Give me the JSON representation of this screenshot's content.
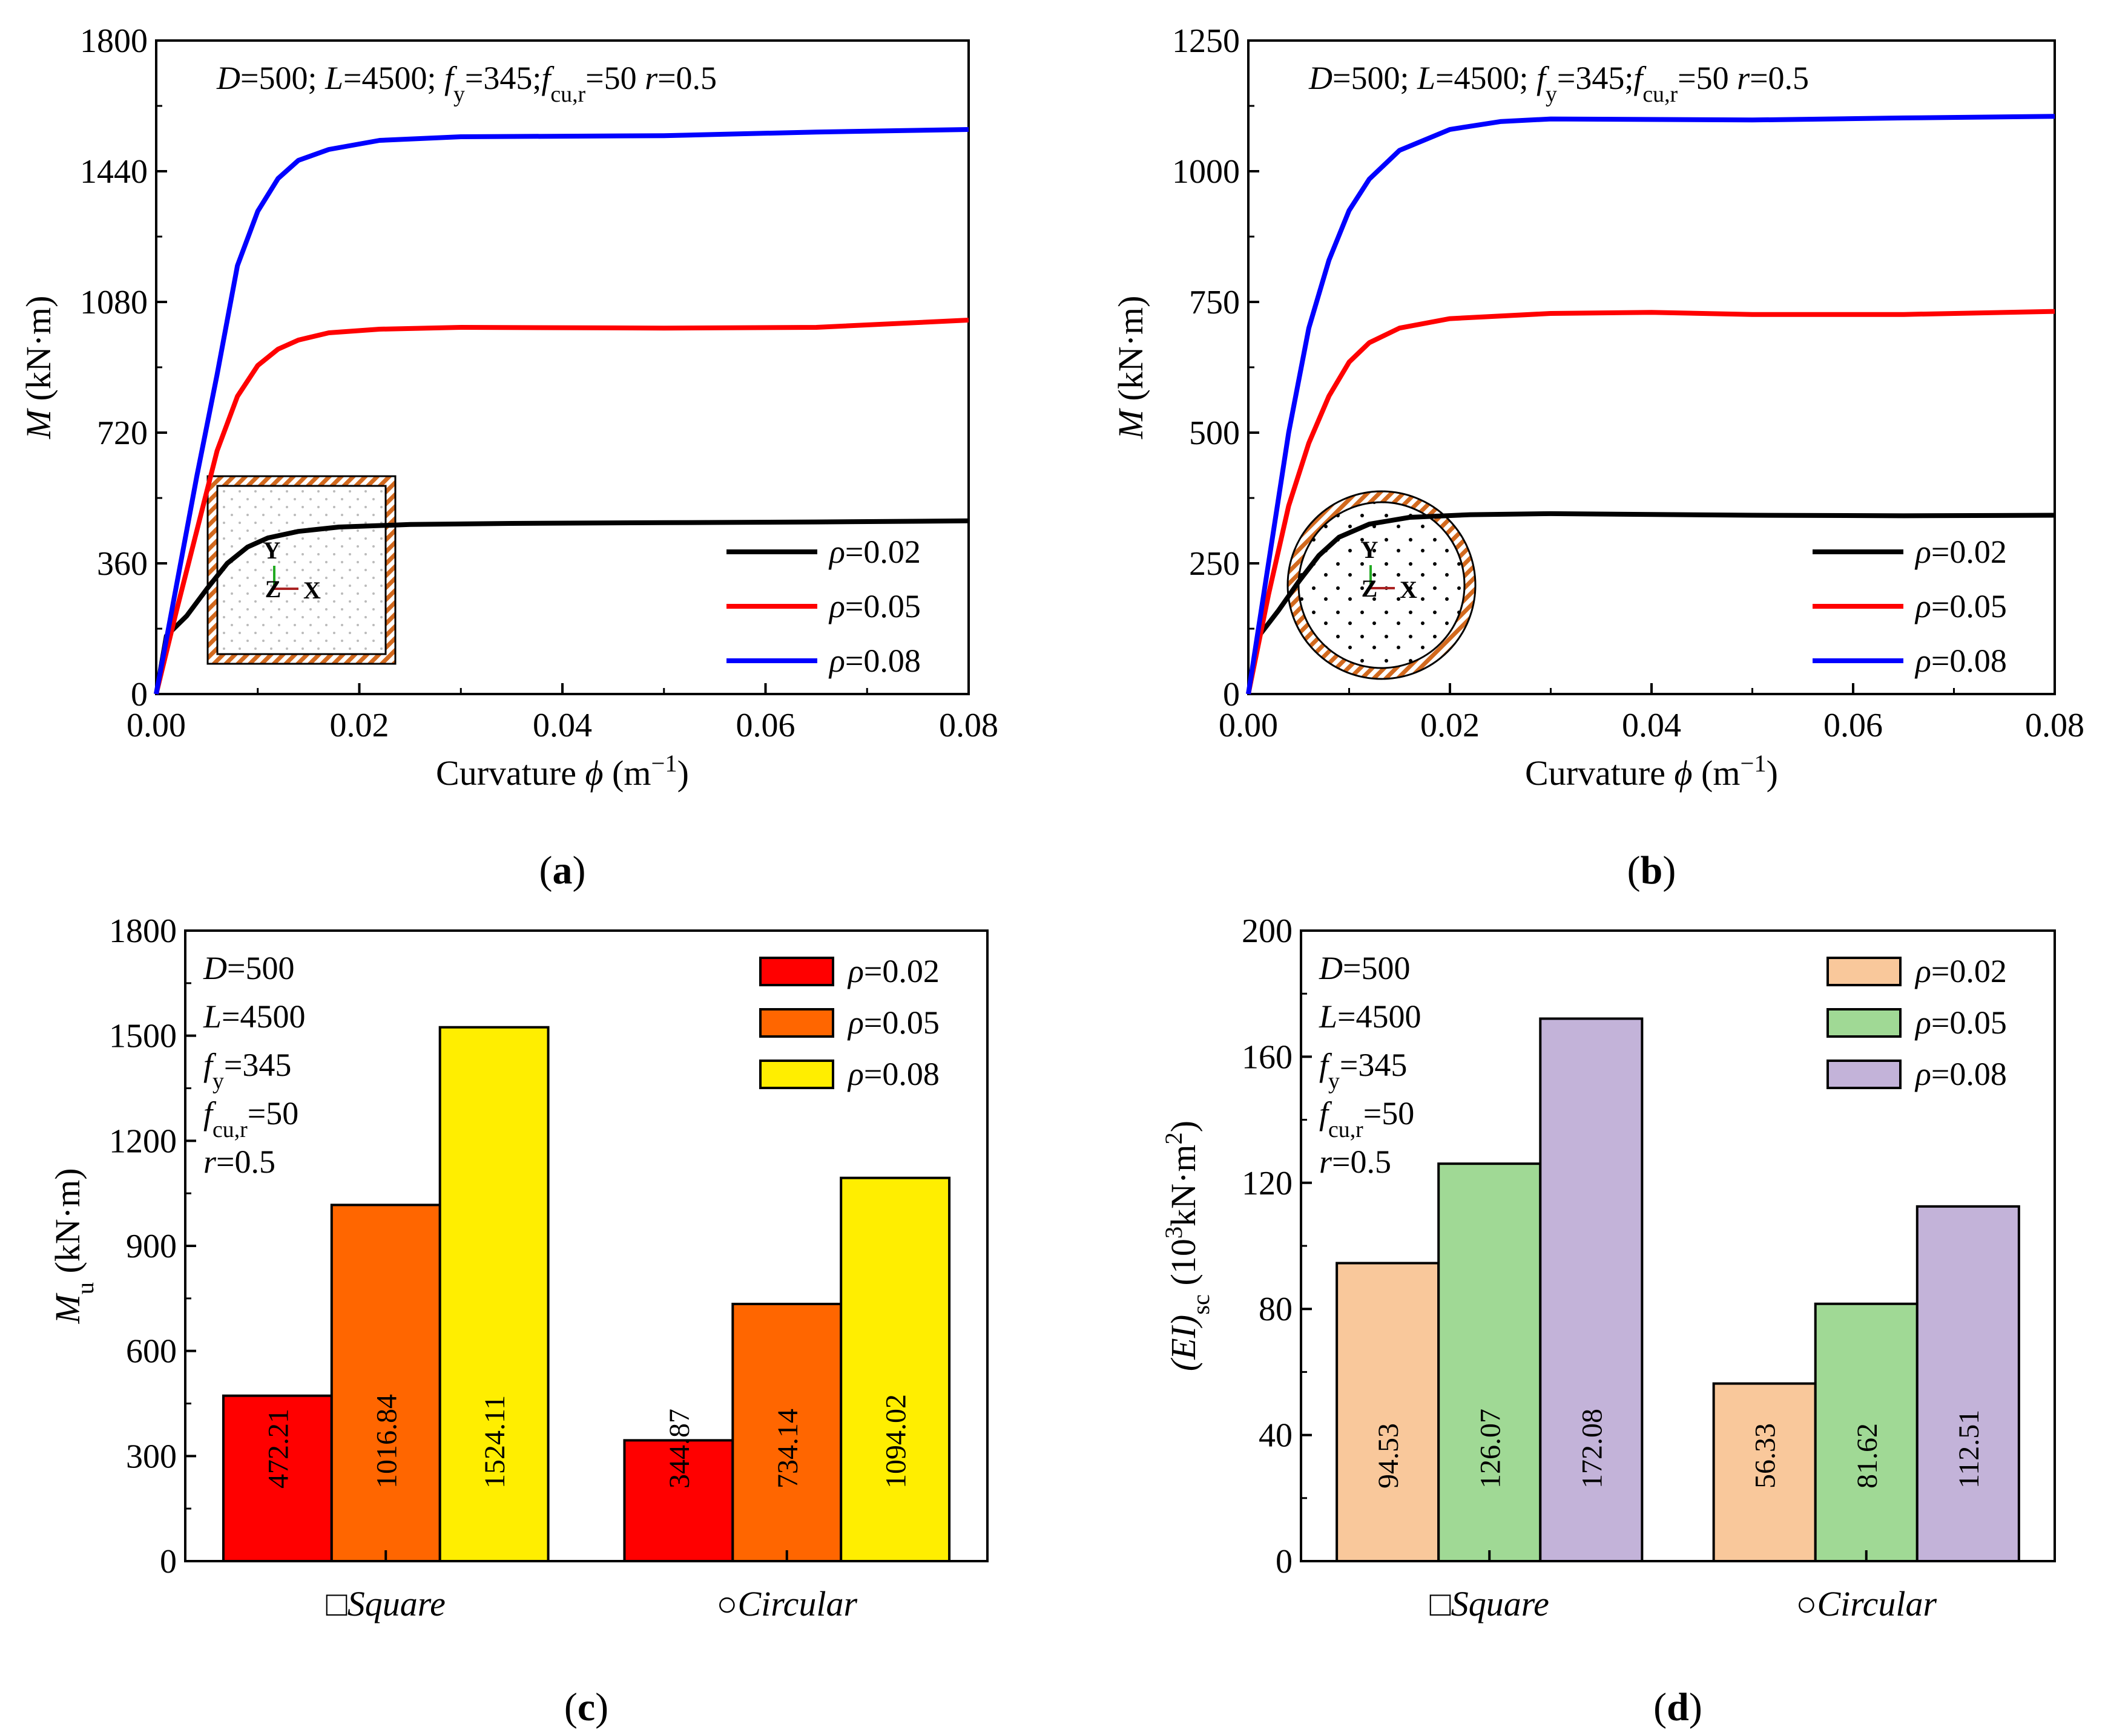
{
  "colors": {
    "black": "#000000",
    "red": "#ff0000",
    "blue": "#0000ff",
    "bar_red": "#ff0000",
    "bar_orange": "#ff6600",
    "bar_yellow": "#ffee00",
    "bar_peach": "#f9c89b",
    "bar_green": "#a0d995",
    "bar_purple": "#c3b3d9",
    "hatch": "#d2691e"
  },
  "chart_data": [
    {
      "type": "line",
      "panel_label": "(a)",
      "annotation": {
        "D": "D=500;",
        "L": "L=4500;",
        "fy": "f",
        "fy_sub": "y",
        "fy_val": "=345;",
        "fcu": "f",
        "fcu_sub": "cu,r",
        "fcu_val": "=50 ",
        "r": "r=0.5"
      },
      "xlabel": {
        "pre": "Curvature ",
        "sym": "ϕ",
        "post": " (m",
        "sup": "−1",
        "close": ")"
      },
      "ylabel": {
        "sym": "M",
        "rest": " (kN·m)"
      },
      "xlim": [
        0,
        0.08
      ],
      "ylim": [
        0,
        1800
      ],
      "xticks": [
        "0.00",
        "0.02",
        "0.04",
        "0.06",
        "0.08"
      ],
      "yticks": [
        "0",
        "360",
        "720",
        "1080",
        "1440",
        "1800"
      ],
      "inset": {
        "shape": "square",
        "y_axis": "Y",
        "z_axis": "Z",
        "x_axis": "X"
      },
      "legend": [
        "ρ=0.02",
        "ρ=0.05",
        "ρ=0.08"
      ],
      "series": [
        {
          "name": "ρ=0.02",
          "color": "black",
          "points": [
            [
              0,
              0
            ],
            [
              0.001,
              160
            ],
            [
              0.003,
              215
            ],
            [
              0.005,
              290
            ],
            [
              0.007,
              360
            ],
            [
              0.009,
              405
            ],
            [
              0.011,
              430
            ],
            [
              0.014,
              448
            ],
            [
              0.018,
              460
            ],
            [
              0.025,
              467
            ],
            [
              0.035,
              470
            ],
            [
              0.05,
              472
            ],
            [
              0.065,
              474
            ],
            [
              0.08,
              477
            ]
          ]
        },
        {
          "name": "ρ=0.05",
          "color": "red",
          "points": [
            [
              0,
              0
            ],
            [
              0.002,
              230
            ],
            [
              0.004,
              450
            ],
            [
              0.006,
              670
            ],
            [
              0.008,
              820
            ],
            [
              0.01,
              905
            ],
            [
              0.012,
              950
            ],
            [
              0.014,
              975
            ],
            [
              0.017,
              995
            ],
            [
              0.022,
              1005
            ],
            [
              0.03,
              1010
            ],
            [
              0.05,
              1008
            ],
            [
              0.065,
              1010
            ],
            [
              0.08,
              1030
            ]
          ]
        },
        {
          "name": "ρ=0.08",
          "color": "blue",
          "points": [
            [
              0,
              0
            ],
            [
              0.002,
              300
            ],
            [
              0.004,
              600
            ],
            [
              0.006,
              880
            ],
            [
              0.008,
              1180
            ],
            [
              0.01,
              1330
            ],
            [
              0.012,
              1420
            ],
            [
              0.014,
              1470
            ],
            [
              0.017,
              1500
            ],
            [
              0.022,
              1525
            ],
            [
              0.03,
              1535
            ],
            [
              0.05,
              1538
            ],
            [
              0.065,
              1548
            ],
            [
              0.08,
              1555
            ]
          ]
        }
      ]
    },
    {
      "type": "line",
      "panel_label": "(b)",
      "annotation": {
        "D": "D=500;",
        "L": "L=4500;",
        "fy": "f",
        "fy_sub": "y",
        "fy_val": "=345;",
        "fcu": "f",
        "fcu_sub": "cu,r",
        "fcu_val": "=50 ",
        "r": "r=0.5"
      },
      "xlabel": {
        "pre": "Curvature ",
        "sym": "ϕ",
        "post": " (m",
        "sup": "−1",
        "close": ")"
      },
      "ylabel": {
        "sym": "M",
        "rest": " (kN·m)"
      },
      "xlim": [
        0,
        0.08
      ],
      "ylim": [
        0,
        1250
      ],
      "xticks": [
        "0.00",
        "0.02",
        "0.04",
        "0.06",
        "0.08"
      ],
      "yticks": [
        "0",
        "250",
        "500",
        "750",
        "1000",
        "1250"
      ],
      "inset": {
        "shape": "circle",
        "y_axis": "Y",
        "z_axis": "Z",
        "x_axis": "X"
      },
      "legend": [
        "ρ=0.02",
        "ρ=0.05",
        "ρ=0.08"
      ],
      "series": [
        {
          "name": "ρ=0.02",
          "color": "black",
          "points": [
            [
              0,
              0
            ],
            [
              0.001,
              110
            ],
            [
              0.003,
              160
            ],
            [
              0.005,
              215
            ],
            [
              0.007,
              265
            ],
            [
              0.009,
              300
            ],
            [
              0.012,
              325
            ],
            [
              0.016,
              338
            ],
            [
              0.022,
              343
            ],
            [
              0.03,
              345
            ],
            [
              0.05,
              342
            ],
            [
              0.065,
              341
            ],
            [
              0.08,
              342
            ]
          ]
        },
        {
          "name": "ρ=0.05",
          "color": "red",
          "points": [
            [
              0,
              0
            ],
            [
              0.002,
              190
            ],
            [
              0.004,
              360
            ],
            [
              0.006,
              480
            ],
            [
              0.008,
              570
            ],
            [
              0.01,
              635
            ],
            [
              0.012,
              672
            ],
            [
              0.015,
              700
            ],
            [
              0.02,
              718
            ],
            [
              0.03,
              728
            ],
            [
              0.04,
              730
            ],
            [
              0.05,
              726
            ],
            [
              0.065,
              726
            ],
            [
              0.08,
              732
            ]
          ]
        },
        {
          "name": "ρ=0.08",
          "color": "blue",
          "points": [
            [
              0,
              0
            ],
            [
              0.002,
              250
            ],
            [
              0.004,
              500
            ],
            [
              0.006,
              700
            ],
            [
              0.008,
              830
            ],
            [
              0.01,
              925
            ],
            [
              0.012,
              985
            ],
            [
              0.015,
              1040
            ],
            [
              0.02,
              1080
            ],
            [
              0.025,
              1095
            ],
            [
              0.03,
              1100
            ],
            [
              0.05,
              1098
            ],
            [
              0.065,
              1102
            ],
            [
              0.08,
              1105
            ]
          ]
        }
      ]
    },
    {
      "type": "bar",
      "panel_label": "(c)",
      "annotation_lines": {
        "D": "D=500",
        "L": "L=4500",
        "fy": "f",
        "fy_sub": "y",
        "fy_val": "=345",
        "fcu": "f",
        "fcu_sub": "cu,r",
        "fcu_val": "=50",
        "r": "r=0.5"
      },
      "ylabel": {
        "sym": "M",
        "sub": "u",
        "rest": " (kN·m)"
      },
      "ylim": [
        0,
        1800
      ],
      "yticks": [
        "0",
        "300",
        "600",
        "900",
        "1200",
        "1500",
        "1800"
      ],
      "categories": [
        {
          "symbol": "□",
          "name": "Square"
        },
        {
          "symbol": "○",
          "name": "Circular"
        }
      ],
      "legend": [
        "ρ=0.02",
        "ρ=0.05",
        "ρ=0.08"
      ],
      "series": [
        {
          "name": "ρ=0.02",
          "color": "bar_red",
          "values": [
            472.21,
            344.87
          ],
          "labels": [
            "472.21",
            "344.87"
          ]
        },
        {
          "name": "ρ=0.05",
          "color": "bar_orange",
          "values": [
            1016.84,
            734.14
          ],
          "labels": [
            "1016.84",
            "734.14"
          ]
        },
        {
          "name": "ρ=0.08",
          "color": "bar_yellow",
          "values": [
            1524.11,
            1094.02
          ],
          "labels": [
            "1524.11",
            "1094.02"
          ]
        }
      ]
    },
    {
      "type": "bar",
      "panel_label": "(d)",
      "annotation_lines": {
        "D": "D=500",
        "L": "L=4500",
        "fy": "f",
        "fy_sub": "y",
        "fy_val": "=345",
        "fcu": "f",
        "fcu_sub": "cu,r",
        "fcu_val": "=50",
        "r": "r=0.5"
      },
      "ylabel": {
        "sym": "(EI)",
        "sub": "sc",
        "rest": " (10",
        "sup": "3",
        "rest2": "kN·m",
        "sup2": "2",
        "close": ")"
      },
      "ylim": [
        0,
        200
      ],
      "yticks": [
        "0",
        "40",
        "80",
        "120",
        "160",
        "200"
      ],
      "categories": [
        {
          "symbol": "□",
          "name": "Square"
        },
        {
          "symbol": "○",
          "name": "Circular"
        }
      ],
      "legend": [
        "ρ=0.02",
        "ρ=0.05",
        "ρ=0.08"
      ],
      "series": [
        {
          "name": "ρ=0.02",
          "color": "bar_peach",
          "values": [
            94.53,
            56.33
          ],
          "labels": [
            "94.53",
            "56.33"
          ]
        },
        {
          "name": "ρ=0.05",
          "color": "bar_green",
          "values": [
            126.07,
            81.62
          ],
          "labels": [
            "126.07",
            "81.62"
          ]
        },
        {
          "name": "ρ=0.08",
          "color": "bar_purple",
          "values": [
            172.08,
            112.51
          ],
          "labels": [
            "172.08",
            "112.51"
          ]
        }
      ]
    }
  ]
}
